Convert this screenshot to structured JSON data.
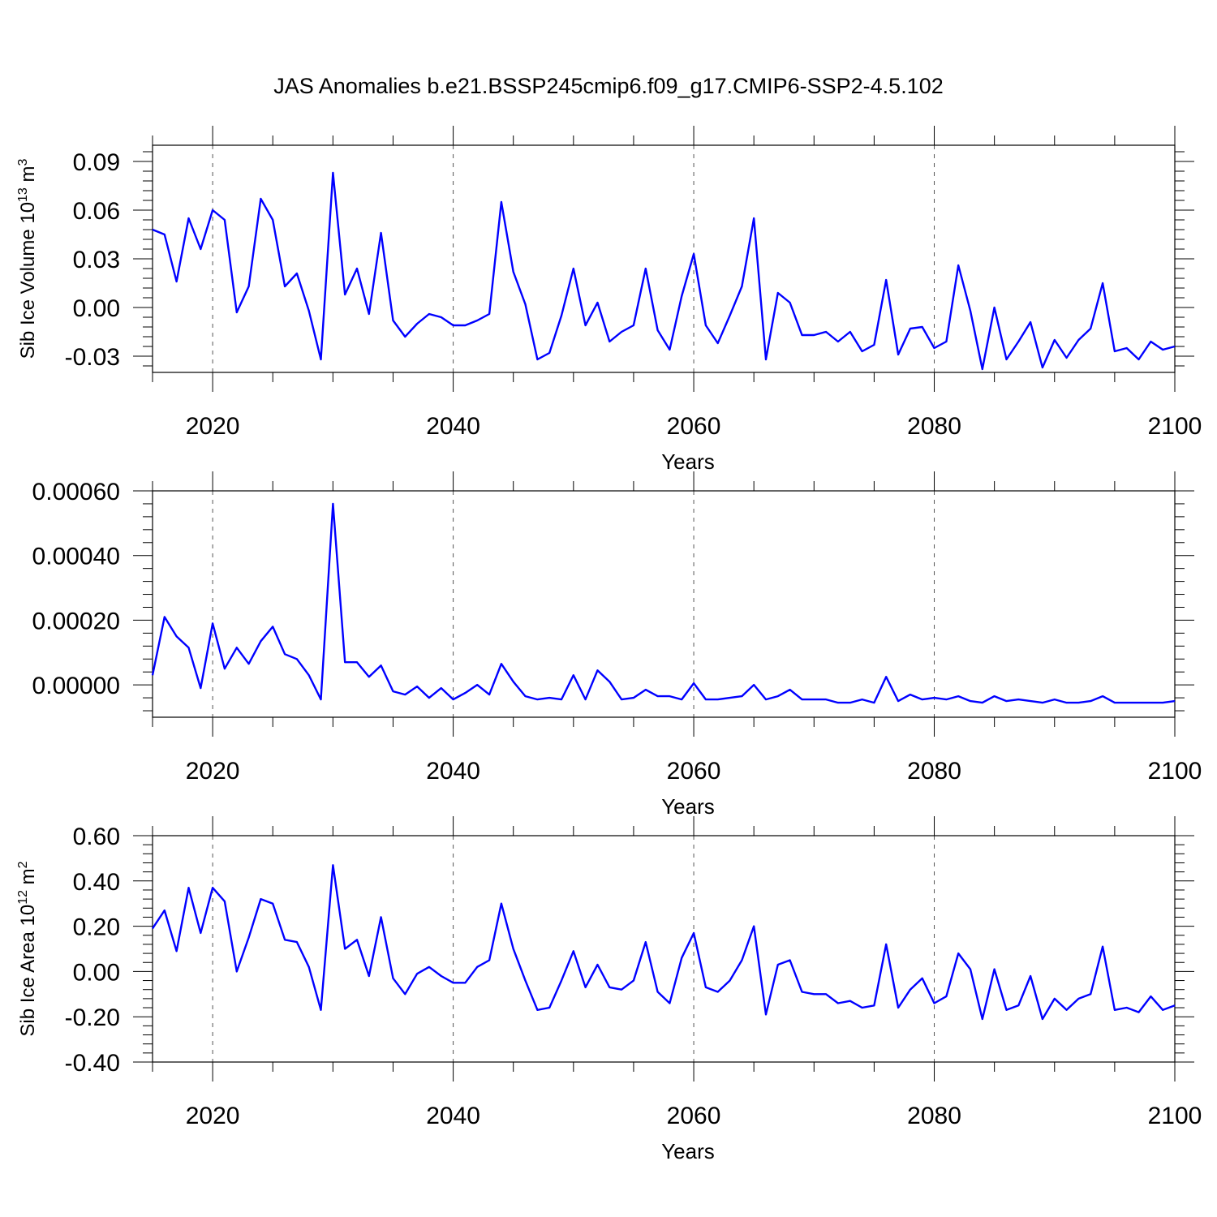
{
  "title": "JAS Anomalies b.e21.BSSP245cmip6.f09_g17.CMIP6-SSP2-4.5.102",
  "colors": {
    "series": "#0000ff",
    "frame": "#000000",
    "grid": "#555555"
  },
  "chart_data": [
    {
      "type": "line",
      "title": "JAS Anomalies b.e21.BSSP245cmip6.f09_g17.CMIP6-SSP2-4.5.102",
      "xlabel": "Years",
      "ylabel": {
        "text": "Sib Ice Volume 10",
        "sup": "13",
        "unit": " m",
        "unit_sup": "3"
      },
      "xlim": [
        2015,
        2100
      ],
      "ylim": [
        -0.04,
        0.1
      ],
      "xticks": [
        2020,
        2040,
        2060,
        2080,
        2100
      ],
      "xtick_labels": [
        "2020",
        "2040",
        "2060",
        "2080",
        "2100"
      ],
      "yticks": [
        -0.03,
        0.0,
        0.03,
        0.06,
        0.09
      ],
      "ytick_labels": [
        "-0.03",
        "0.00",
        "0.03",
        "0.06",
        "0.09"
      ],
      "grid": "vertical dashed at major x ticks",
      "x_start": 2015,
      "values": [
        0.048,
        0.045,
        0.016,
        0.055,
        0.036,
        0.06,
        0.054,
        -0.003,
        0.013,
        0.067,
        0.054,
        0.013,
        0.021,
        -0.002,
        -0.032,
        0.083,
        0.008,
        0.024,
        -0.004,
        0.046,
        -0.008,
        -0.018,
        -0.01,
        -0.004,
        -0.006,
        -0.011,
        -0.011,
        -0.008,
        -0.004,
        0.065,
        0.022,
        0.002,
        -0.032,
        -0.028,
        -0.005,
        0.024,
        -0.011,
        0.003,
        -0.021,
        -0.015,
        -0.011,
        0.024,
        -0.014,
        -0.026,
        0.007,
        0.033,
        -0.011,
        -0.022,
        -0.005,
        0.013,
        0.055,
        -0.032,
        0.009,
        0.003,
        -0.017,
        -0.017,
        -0.015,
        -0.021,
        -0.015,
        -0.027,
        -0.023,
        0.017,
        -0.029,
        -0.013,
        -0.012,
        -0.025,
        -0.021,
        0.026,
        -0.002,
        -0.038,
        0.0,
        -0.032,
        -0.021,
        -0.009,
        -0.037,
        -0.02,
        -0.031,
        -0.02,
        -0.013,
        0.015,
        -0.027,
        -0.025,
        -0.032,
        -0.021,
        -0.026,
        -0.024
      ]
    },
    {
      "type": "line",
      "xlabel": "Years",
      "ylabel": null,
      "xlim": [
        2015,
        2100
      ],
      "ylim": [
        -0.0001,
        0.0006
      ],
      "xticks": [
        2020,
        2040,
        2060,
        2080,
        2100
      ],
      "xtick_labels": [
        "2020",
        "2040",
        "2060",
        "2080",
        "2100"
      ],
      "yticks": [
        0.0,
        0.0002,
        0.0004,
        0.0006
      ],
      "ytick_labels": [
        "0.00000",
        "0.00020",
        "0.00040",
        "0.00060"
      ],
      "grid": "vertical dashed at major x ticks",
      "x_start": 2015,
      "values": [
        3e-05,
        0.00021,
        0.00015,
        0.000115,
        -1e-05,
        0.00019,
        5e-05,
        0.000115,
        6.5e-05,
        0.000135,
        0.00018,
        9.5e-05,
        8e-05,
        3e-05,
        -4.5e-05,
        0.00056,
        7e-05,
        7e-05,
        2.5e-05,
        6e-05,
        -2e-05,
        -3e-05,
        -5e-06,
        -4e-05,
        -1e-05,
        -4.5e-05,
        -2.5e-05,
        0.0,
        -3e-05,
        6.5e-05,
        1e-05,
        -3.5e-05,
        -4.5e-05,
        -4e-05,
        -4.5e-05,
        3e-05,
        -4.5e-05,
        4.5e-05,
        1e-05,
        -4.5e-05,
        -4e-05,
        -1.5e-05,
        -3.5e-05,
        -3.5e-05,
        -4.5e-05,
        5e-06,
        -4.5e-05,
        -4.5e-05,
        -4e-05,
        -3.5e-05,
        0.0,
        -4.5e-05,
        -3.5e-05,
        -1.5e-05,
        -4.5e-05,
        -4.5e-05,
        -4.5e-05,
        -5.5e-05,
        -5.5e-05,
        -4.5e-05,
        -5.5e-05,
        2.5e-05,
        -5e-05,
        -3e-05,
        -4.5e-05,
        -4e-05,
        -4.5e-05,
        -3.5e-05,
        -5e-05,
        -5.5e-05,
        -3.5e-05,
        -5e-05,
        -4.5e-05,
        -5e-05,
        -5.5e-05,
        -4.5e-05,
        -5.5e-05,
        -5.5e-05,
        -5e-05,
        -3.5e-05,
        -5.5e-05,
        -5.5e-05,
        -5.5e-05,
        -5.5e-05,
        -5.5e-05,
        -5e-05
      ]
    },
    {
      "type": "line",
      "xlabel": "Years",
      "ylabel": {
        "text": "Sib Ice Area 10",
        "sup": "12",
        "unit": " m",
        "unit_sup": "2"
      },
      "xlim": [
        2015,
        2100
      ],
      "ylim": [
        -0.4,
        0.6
      ],
      "xticks": [
        2020,
        2040,
        2060,
        2080,
        2100
      ],
      "xtick_labels": [
        "2020",
        "2040",
        "2060",
        "2080",
        "2100"
      ],
      "yticks": [
        -0.4,
        -0.2,
        0.0,
        0.2,
        0.4,
        0.6
      ],
      "ytick_labels": [
        "-0.40",
        "-0.20",
        "0.00",
        "0.20",
        "0.40",
        "0.60"
      ],
      "grid": "vertical dashed at major x ticks",
      "x_start": 2015,
      "values": [
        0.19,
        0.27,
        0.09,
        0.37,
        0.17,
        0.37,
        0.31,
        0.0,
        0.15,
        0.32,
        0.3,
        0.14,
        0.13,
        0.02,
        -0.17,
        0.47,
        0.1,
        0.14,
        -0.02,
        0.24,
        -0.03,
        -0.1,
        -0.01,
        0.02,
        -0.02,
        -0.05,
        -0.05,
        0.02,
        0.05,
        0.3,
        0.1,
        -0.04,
        -0.17,
        -0.16,
        -0.04,
        0.09,
        -0.07,
        0.03,
        -0.07,
        -0.08,
        -0.04,
        0.13,
        -0.09,
        -0.14,
        0.06,
        0.17,
        -0.07,
        -0.09,
        -0.04,
        0.05,
        0.2,
        -0.19,
        0.03,
        0.05,
        -0.09,
        -0.1,
        -0.1,
        -0.14,
        -0.13,
        -0.16,
        -0.15,
        0.12,
        -0.16,
        -0.08,
        -0.03,
        -0.14,
        -0.11,
        0.08,
        0.01,
        -0.21,
        0.01,
        -0.17,
        -0.15,
        -0.02,
        -0.21,
        -0.12,
        -0.17,
        -0.12,
        -0.1,
        0.11,
        -0.17,
        -0.16,
        -0.18,
        -0.11,
        -0.17,
        -0.15
      ]
    }
  ]
}
